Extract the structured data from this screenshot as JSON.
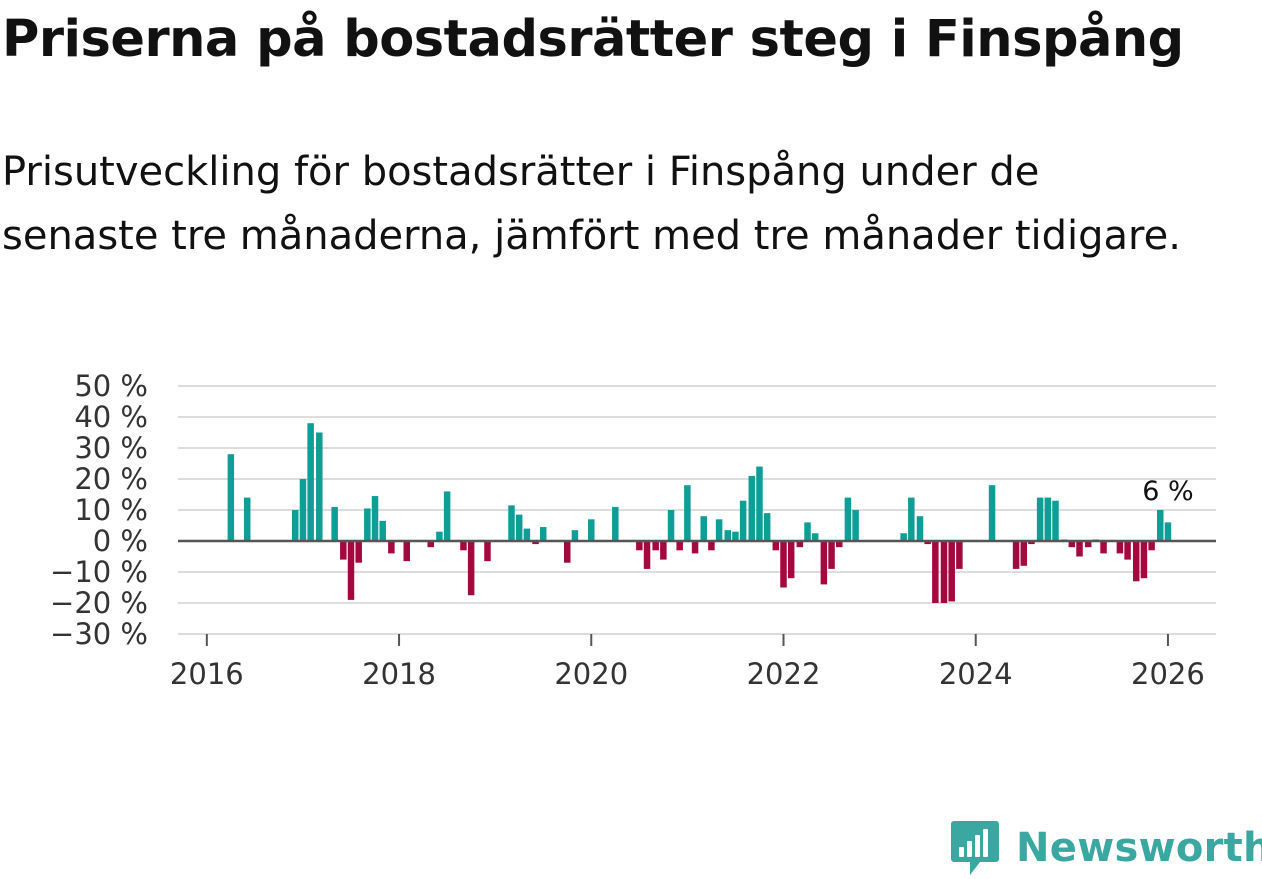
{
  "title": "Priserna på bostadsrätter steg i Finspång",
  "subtitle": "Prisutveckling för bostadsrätter i Finspång under de senaste tre månaderna, jämfört med tre månader tidigare.",
  "brand": {
    "name": "Newsworthy",
    "icon": "newsworthy-bar-chart-icon"
  },
  "colors": {
    "positive": "#0f9e96",
    "negative": "#a3093f",
    "grid": "#dddddd",
    "zero_line": "#555555",
    "brand": "#3aa7a0"
  },
  "chart_data": {
    "type": "bar",
    "x_unit": "year (decimal, monthly bars)",
    "ylim": [
      -30,
      50
    ],
    "xlim": [
      2015.7,
      2026.5
    ],
    "y_ticks": [
      50,
      40,
      30,
      20,
      10,
      0,
      -10,
      -20,
      -30
    ],
    "y_tick_labels": [
      "50 %",
      "40 %",
      "30 %",
      "20 %",
      "10 %",
      "0 %",
      "−10 %",
      "−20 %",
      "−30 %"
    ],
    "x_ticks": [
      2016,
      2018,
      2020,
      2022,
      2024,
      2026
    ],
    "x_tick_labels": [
      "2016",
      "2018",
      "2020",
      "2022",
      "2024",
      "2026"
    ],
    "grid": true,
    "legend": "none",
    "annotation": {
      "text": "6 %",
      "x": 2026.0,
      "y": 10
    },
    "points": [
      {
        "x": 2016.25,
        "y": 28
      },
      {
        "x": 2016.42,
        "y": 14
      },
      {
        "x": 2016.92,
        "y": 10
      },
      {
        "x": 2017.0,
        "y": 20
      },
      {
        "x": 2017.08,
        "y": 38
      },
      {
        "x": 2017.17,
        "y": 35
      },
      {
        "x": 2017.33,
        "y": 11
      },
      {
        "x": 2017.42,
        "y": -6
      },
      {
        "x": 2017.5,
        "y": -19
      },
      {
        "x": 2017.58,
        "y": -7
      },
      {
        "x": 2017.67,
        "y": 10.5
      },
      {
        "x": 2017.75,
        "y": 14.5
      },
      {
        "x": 2017.83,
        "y": 6.5
      },
      {
        "x": 2017.92,
        "y": -4
      },
      {
        "x": 2018.08,
        "y": -6.5
      },
      {
        "x": 2018.33,
        "y": -2
      },
      {
        "x": 2018.42,
        "y": 3
      },
      {
        "x": 2018.5,
        "y": 16
      },
      {
        "x": 2018.67,
        "y": -3
      },
      {
        "x": 2018.75,
        "y": -17.5
      },
      {
        "x": 2018.92,
        "y": -6.5
      },
      {
        "x": 2019.17,
        "y": 11.5
      },
      {
        "x": 2019.25,
        "y": 8.5
      },
      {
        "x": 2019.33,
        "y": 4
      },
      {
        "x": 2019.42,
        "y": -1
      },
      {
        "x": 2019.5,
        "y": 4.5
      },
      {
        "x": 2019.75,
        "y": -7
      },
      {
        "x": 2019.83,
        "y": 3.5
      },
      {
        "x": 2020.0,
        "y": 7
      },
      {
        "x": 2020.25,
        "y": 11
      },
      {
        "x": 2020.5,
        "y": -3
      },
      {
        "x": 2020.58,
        "y": -9
      },
      {
        "x": 2020.67,
        "y": -3
      },
      {
        "x": 2020.75,
        "y": -6
      },
      {
        "x": 2020.83,
        "y": 10
      },
      {
        "x": 2020.92,
        "y": -3
      },
      {
        "x": 2021.0,
        "y": 18
      },
      {
        "x": 2021.08,
        "y": -4
      },
      {
        "x": 2021.17,
        "y": 8
      },
      {
        "x": 2021.25,
        "y": -3
      },
      {
        "x": 2021.33,
        "y": 7
      },
      {
        "x": 2021.42,
        "y": 3.5
      },
      {
        "x": 2021.5,
        "y": 3
      },
      {
        "x": 2021.58,
        "y": 13
      },
      {
        "x": 2021.67,
        "y": 21
      },
      {
        "x": 2021.75,
        "y": 24
      },
      {
        "x": 2021.83,
        "y": 9
      },
      {
        "x": 2021.92,
        "y": -3
      },
      {
        "x": 2022.0,
        "y": -15
      },
      {
        "x": 2022.08,
        "y": -12
      },
      {
        "x": 2022.17,
        "y": -2
      },
      {
        "x": 2022.25,
        "y": 6
      },
      {
        "x": 2022.33,
        "y": 2.5
      },
      {
        "x": 2022.42,
        "y": -14
      },
      {
        "x": 2022.5,
        "y": -9
      },
      {
        "x": 2022.58,
        "y": -2
      },
      {
        "x": 2022.67,
        "y": 14
      },
      {
        "x": 2022.75,
        "y": 10
      },
      {
        "x": 2023.25,
        "y": 2.5
      },
      {
        "x": 2023.33,
        "y": 14
      },
      {
        "x": 2023.42,
        "y": 8
      },
      {
        "x": 2023.5,
        "y": -1
      },
      {
        "x": 2023.58,
        "y": -20
      },
      {
        "x": 2023.67,
        "y": -20
      },
      {
        "x": 2023.75,
        "y": -19.5
      },
      {
        "x": 2023.83,
        "y": -9
      },
      {
        "x": 2024.17,
        "y": 18
      },
      {
        "x": 2024.42,
        "y": -9
      },
      {
        "x": 2024.5,
        "y": -8
      },
      {
        "x": 2024.58,
        "y": -1
      },
      {
        "x": 2024.67,
        "y": 14
      },
      {
        "x": 2024.75,
        "y": 14
      },
      {
        "x": 2024.83,
        "y": 13
      },
      {
        "x": 2024.92,
        "y": 0.5
      },
      {
        "x": 2025.0,
        "y": -2
      },
      {
        "x": 2025.08,
        "y": -5
      },
      {
        "x": 2025.17,
        "y": -2
      },
      {
        "x": 2025.25,
        "y": 0.5
      },
      {
        "x": 2025.33,
        "y": -4
      },
      {
        "x": 2025.5,
        "y": -4
      },
      {
        "x": 2025.58,
        "y": -6
      },
      {
        "x": 2025.67,
        "y": -13
      },
      {
        "x": 2025.75,
        "y": -12
      },
      {
        "x": 2025.83,
        "y": -3
      },
      {
        "x": 2025.92,
        "y": 10
      },
      {
        "x": 2026.0,
        "y": 6
      }
    ]
  }
}
